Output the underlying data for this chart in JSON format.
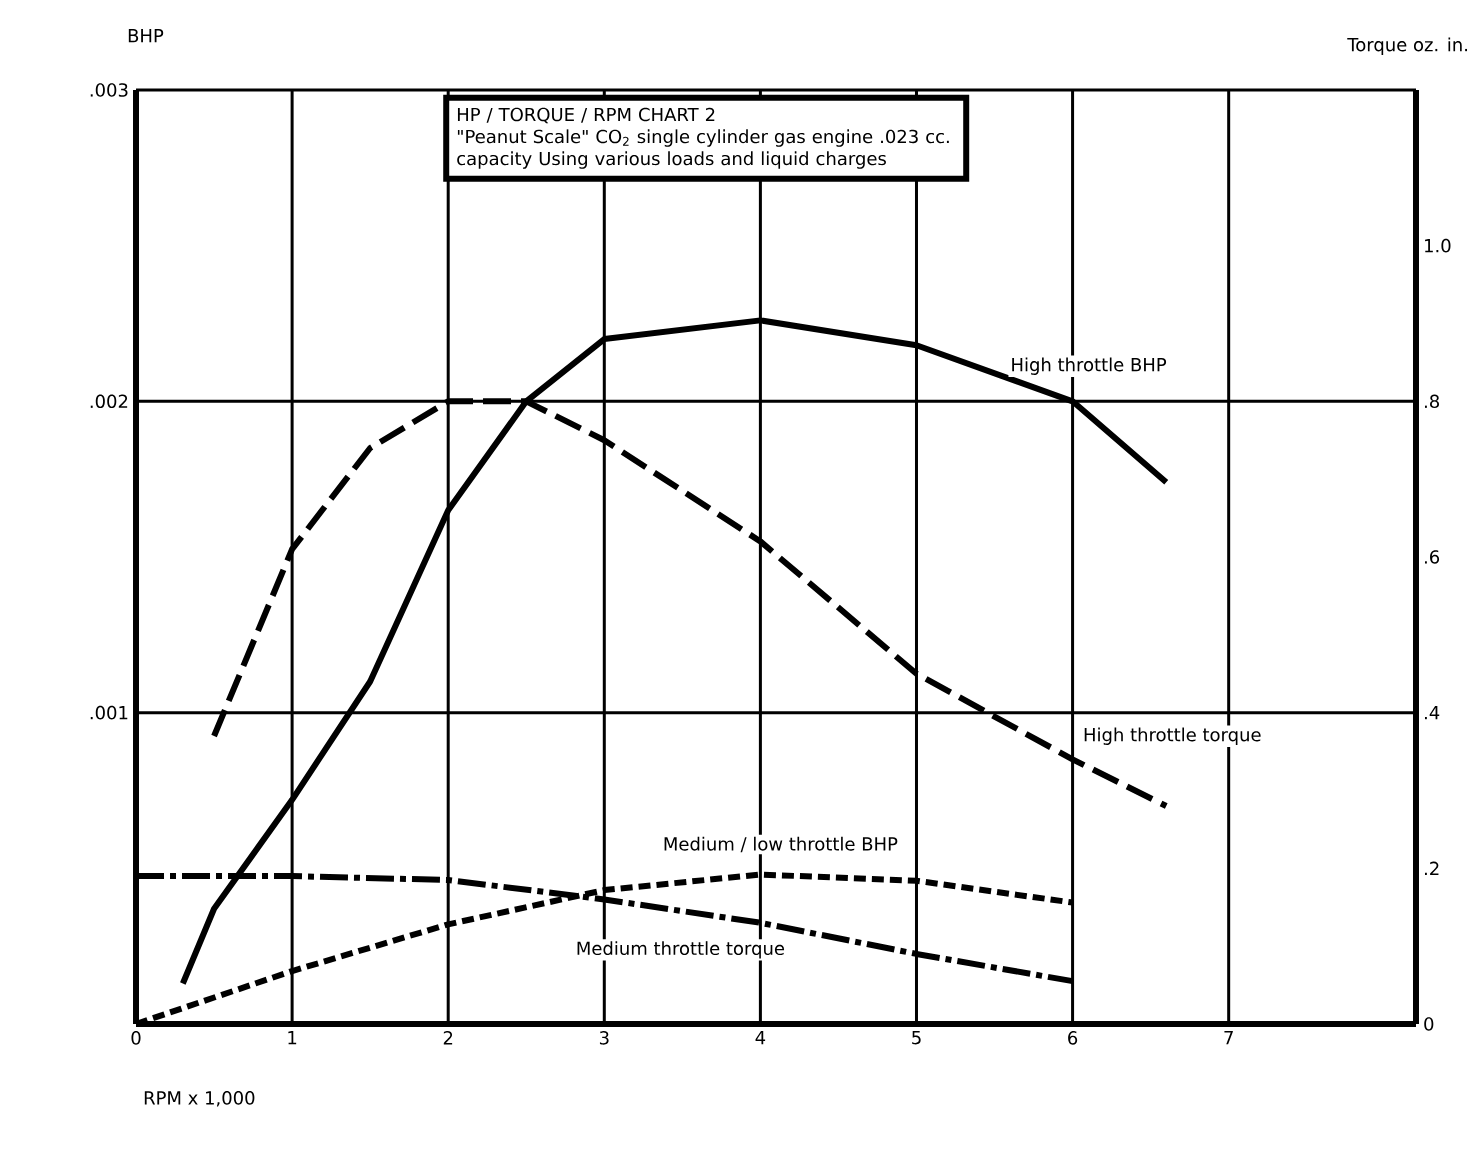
{
  "chart_data": {
    "type": "line",
    "title": "HP / TORQUE / RPM  CHART 2",
    "subtitle": "\"Peanut Scale\" CO$_{2}$ single cylinder gas engine .023 cc. capacity Using various loads and liquid charges",
    "xlabel": "RPM x 1,000",
    "ylabel": "BHP",
    "y2label": "Torque oz. in.",
    "xlim": [
      0,
      8.2
    ],
    "xticks": [
      0,
      1,
      2,
      3,
      4,
      5,
      6,
      7
    ],
    "ylim": [
      0,
      0.003
    ],
    "yticks": [
      {
        "value": 0,
        "label": null
      },
      {
        "value": 0.001,
        "label": ".001"
      },
      {
        "value": 0.002,
        "label": ".002"
      },
      {
        "value": 0.003,
        "label": ".003"
      }
    ],
    "y2lim": [
      0,
      1.2
    ],
    "y2ticks": [
      0,
      {
        "value": 0.2,
        "label": ".2"
      },
      {
        "value": 0.4,
        "label": ".4"
      },
      {
        "value": 0.6,
        "label": ".6"
      },
      {
        "value": 0.8,
        "label": ".8"
      },
      {
        "value": 1.0,
        "label": "1.0"
      },
      {
        "value": 1.2,
        "label": null
      }
    ],
    "grid": true,
    "marker": "none",
    "series": [
      {
        "name": "High throttle BHP",
        "color": "#000000",
        "line_style": "solid",
        "x": [
          0.3,
          0.5,
          1,
          1.5,
          2,
          2.5,
          3,
          4,
          5,
          6,
          6.6
        ],
        "values": [
          0.00013,
          0.00037,
          0.00072,
          0.0011,
          0.00165,
          0.002,
          0.0022,
          0.00226,
          0.00218,
          0.002,
          0.00174
        ]
      },
      {
        "name": "High throttle torque",
        "color": "#000000",
        "line_style": "dashed",
        "axis": "y2",
        "x": [
          0.5,
          1,
          1.5,
          2,
          2.5,
          3,
          4,
          5,
          6,
          6.6
        ],
        "values": [
          0.37,
          0.61,
          0.74,
          0.8,
          0.8,
          0.75,
          0.62,
          0.45,
          0.34,
          0.28
        ]
      },
      {
        "name": "Medium / low throttle BHP",
        "color": "#000000",
        "line_style": "dotted",
        "x": [
          0,
          1,
          2,
          3,
          4,
          5,
          6
        ],
        "values": [
          0.0,
          0.00017,
          0.00032,
          0.00043,
          0.00048,
          0.00046,
          0.00039
        ]
      },
      {
        "name": "Medium throttle torque",
        "color": "#000000",
        "line_style": "dashdot",
        "axis": "y2",
        "x": [
          0,
          1,
          2,
          3,
          4,
          5,
          6
        ],
        "values": [
          0.19,
          0.19,
          0.185,
          0.16,
          0.13,
          0.09,
          0.055
        ]
      }
    ]
  }
}
